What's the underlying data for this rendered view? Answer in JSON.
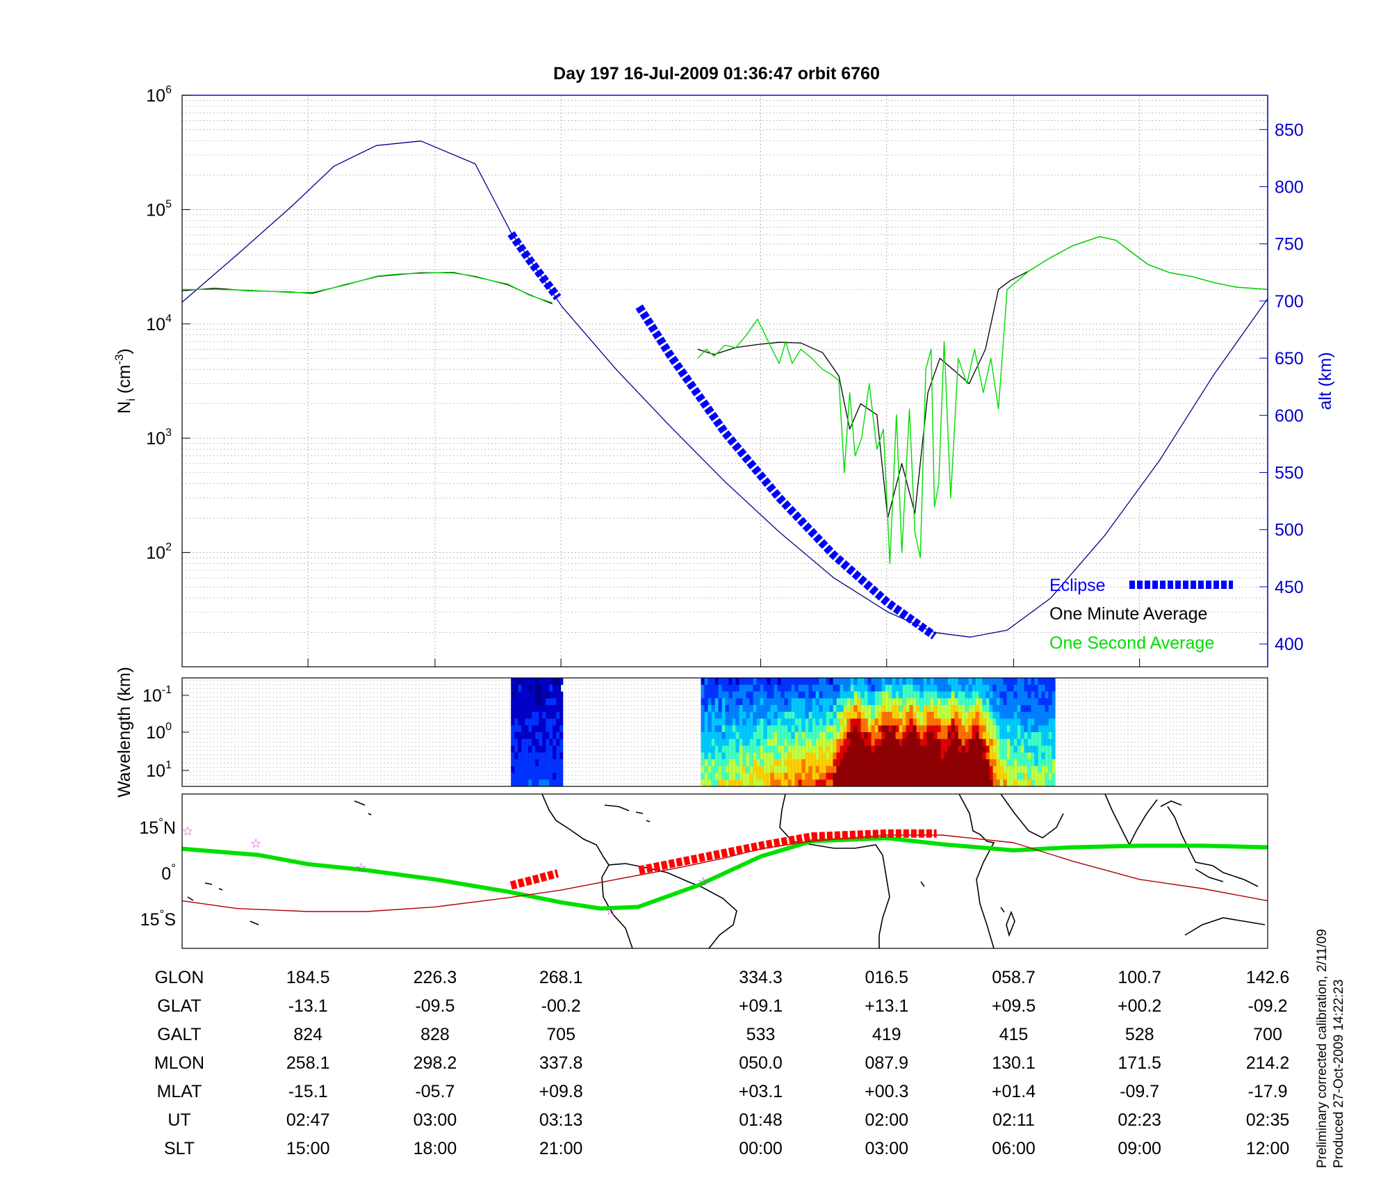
{
  "title": "Day 197  16-Jul-2009 01:36:47   orbit 6760",
  "footnote": [
    "Preliminary corrected calibration, 2/11/09",
    "Produced 27-Oct-2009 14:22:23"
  ],
  "colors": {
    "eclipse": "#0000ff",
    "one_minute": "#000000",
    "one_second": "#00dd00",
    "altitude": "#00008b",
    "map_track": "#00e000",
    "map_eclipse": "#ff0000",
    "map_mag_equator": "#b00000",
    "stars": "#cc33cc"
  },
  "chart_data": [
    {
      "type": "line",
      "name": "density-panel",
      "ylabel": "N_i (cm^-3)",
      "ylabel_base": "N",
      "ylabel_sub": "i",
      "ylabel_unit": "(cm",
      "ylabel_exp": "-3",
      "ylabel_close": ")",
      "yscale": "log",
      "ylim": [
        10,
        1000000
      ],
      "yticks": [
        {
          "base": "10",
          "exp": "2",
          "value": 100
        },
        {
          "base": "10",
          "exp": "3",
          "value": 1000
        },
        {
          "base": "10",
          "exp": "4",
          "value": 10000
        },
        {
          "base": "10",
          "exp": "5",
          "value": 100000
        },
        {
          "base": "10",
          "exp": "6",
          "value": 1000000
        }
      ],
      "y2label": "alt (km)",
      "y2lim": [
        380,
        880
      ],
      "y2ticks": [
        400,
        450,
        500,
        550,
        600,
        650,
        700,
        750,
        800,
        850
      ],
      "xlim": [
        0,
        100
      ],
      "xticks": [
        11.6,
        23.3,
        34.9,
        53.3,
        64.9,
        76.6,
        88.2
      ],
      "grid": true,
      "legend_placement": "bottom-right",
      "legend": [
        {
          "label": "Eclipse",
          "key": "eclipse"
        },
        {
          "label": "One Minute Average",
          "key": "one_minute"
        },
        {
          "label": "One Second Average",
          "key": "one_second"
        }
      ],
      "series": [
        {
          "key": "altitude",
          "axis": "right",
          "x": [
            0,
            5,
            10,
            14,
            17.9,
            22,
            27,
            30.3,
            35,
            40,
            45,
            50,
            55,
            60,
            65,
            69.3,
            72.6,
            76,
            80,
            85,
            90,
            95,
            100
          ],
          "y": [
            699,
            740,
            782,
            818,
            836,
            840,
            820,
            760,
            695,
            640,
            590,
            542,
            498,
            458,
            428,
            410,
            406,
            412,
            440,
            495,
            560,
            635,
            702
          ]
        },
        {
          "key": "one_minute",
          "axis": "left",
          "x": [
            0,
            3,
            6,
            10,
            12,
            15,
            18,
            20,
            22,
            25,
            27,
            30,
            32,
            34.1
          ],
          "y": [
            19500,
            20500,
            19500,
            19000,
            18500,
            22000,
            26000,
            27000,
            28000,
            28000,
            26000,
            22000,
            18000,
            15000
          ]
        },
        {
          "key": "one_second",
          "axis": "left",
          "x": [
            0,
            3,
            6,
            10,
            12,
            15,
            18,
            20,
            22,
            25,
            27,
            30,
            32,
            34.1
          ],
          "y": [
            20000,
            20000,
            19700,
            18800,
            18800,
            21800,
            26200,
            27300,
            27700,
            28300,
            25700,
            22300,
            17800,
            15300
          ]
        },
        {
          "key": "one_minute",
          "axis": "left",
          "x": [
            47.5,
            49,
            51,
            53,
            55,
            57,
            59,
            60.5,
            61.5,
            62.5,
            64,
            65,
            66.3,
            67.5,
            68.7,
            69.8,
            71,
            72.5,
            74,
            75.2,
            76.3,
            78,
            80,
            82,
            84.5,
            86,
            87.5,
            89,
            91,
            93,
            95,
            97,
            100
          ],
          "y": [
            6000,
            5400,
            6200,
            6600,
            6900,
            6800,
            5600,
            3500,
            1200,
            2000,
            1600,
            200,
            600,
            220,
            2500,
            5000,
            4000,
            3000,
            6000,
            20000,
            24000,
            29000,
            38000,
            48000,
            58000,
            54000,
            42000,
            33000,
            28000,
            26000,
            23000,
            21000,
            20000
          ]
        },
        {
          "key": "one_second",
          "axis": "left",
          "x": [
            47.5,
            48.3,
            49,
            50,
            51,
            52,
            53,
            54,
            55,
            55.6,
            56.2,
            57,
            58,
            59,
            59.8,
            60.5,
            61,
            61.5,
            62,
            62.6,
            63.3,
            64,
            64.6,
            65.2,
            65.8,
            66.3,
            67,
            67.5,
            68,
            68.5,
            69,
            69.3,
            69.7,
            70.2,
            70.8,
            71.5,
            72.3,
            73,
            73.8,
            74.5,
            75.2,
            76,
            77,
            78,
            80,
            82,
            84.5,
            86,
            87.5,
            89,
            91,
            93,
            95,
            97,
            100
          ],
          "y": [
            5000,
            6000,
            5200,
            6500,
            6200,
            8000,
            11000,
            7000,
            4500,
            7000,
            4500,
            6000,
            5000,
            4000,
            3600,
            3200,
            500,
            2500,
            700,
            1000,
            3000,
            800,
            1200,
            80,
            1600,
            100,
            1800,
            150,
            90,
            4000,
            6000,
            250,
            400,
            7000,
            300,
            5000,
            3000,
            6000,
            2500,
            5000,
            1800,
            20000,
            24000,
            29000,
            38000,
            48000,
            58000,
            54000,
            42000,
            33000,
            28000,
            26000,
            23000,
            21000,
            20000
          ]
        },
        {
          "key": "eclipse",
          "axis": "right",
          "x": [
            30.3,
            32,
            34.6
          ],
          "y": [
            759,
            736,
            703
          ]
        },
        {
          "key": "eclipse",
          "axis": "right",
          "x": [
            42.1,
            45,
            50,
            55,
            60,
            65,
            69.3
          ],
          "y": [
            695,
            652,
            585,
            528,
            478,
            436,
            407
          ]
        }
      ]
    },
    {
      "type": "heatmap",
      "name": "wavelength-spectrogram",
      "ylabel": "Wavelength (km)",
      "yscale": "log",
      "yticks": [
        {
          "base": "10",
          "exp": "-1"
        },
        {
          "base": "10",
          "exp": "0"
        },
        {
          "base": "10",
          "exp": "1"
        }
      ],
      "xlim": [
        0,
        100
      ],
      "segments": [
        {
          "x": [
            30.3,
            34.9
          ],
          "level": "low"
        },
        {
          "x": [
            47.8,
            80.2
          ],
          "level": "enhanced"
        }
      ],
      "peaks_x": [
        62,
        65,
        67,
        69,
        71,
        73
      ],
      "grid": true
    },
    {
      "type": "scatter",
      "name": "map-panel",
      "xlim": [
        0,
        100
      ],
      "yticks": [
        {
          "deg": "15",
          "label_suffix": "N",
          "lat": 15
        },
        {
          "deg": "0",
          "label_suffix": "",
          "lat": 0
        },
        {
          "deg": "15",
          "label_suffix": "S",
          "lat": -15
        }
      ],
      "series": [
        {
          "key": "map_track",
          "x": [
            0,
            7,
            11.6,
            17,
            23.3,
            30,
            34.9,
            38.5,
            42,
            47.5,
            53.3,
            58,
            64.9,
            70,
            76.6,
            82,
            88.2,
            94,
            100
          ],
          "y": [
            8,
            6,
            3,
            1,
            -2,
            -6,
            -9.5,
            -11.5,
            -11,
            -4,
            5.5,
            10.5,
            11.5,
            9.5,
            7.5,
            8.5,
            9,
            9,
            8.5
          ]
        },
        {
          "key": "map_mag_equator",
          "x": [
            0,
            5,
            11.6,
            17,
            23.3,
            30,
            34.9,
            40,
            46,
            50,
            53.3,
            58,
            64.9,
            70,
            76.6,
            82,
            88.2,
            94,
            100
          ],
          "y": [
            -9,
            -11.5,
            -12.5,
            -12.5,
            -11,
            -8,
            -5.5,
            -2,
            2,
            5,
            8,
            10.5,
            12.5,
            12.5,
            10,
            4,
            -2,
            -5,
            -9
          ]
        },
        {
          "key": "map_eclipse",
          "x": [
            30.3,
            32.5,
            34.6
          ],
          "y": [
            -4,
            -2,
            0
          ]
        },
        {
          "key": "map_eclipse",
          "x": [
            42.1,
            47,
            53.3,
            58,
            64.9,
            69.5
          ],
          "y": [
            1,
            4.5,
            9,
            12,
            13,
            13
          ]
        }
      ],
      "stars": [
        {
          "x": 0.5,
          "y": 14
        },
        {
          "x": 6.8,
          "y": 10
        },
        {
          "x": 16.5,
          "y": 2
        },
        {
          "x": 39.5,
          "y": -12
        },
        {
          "x": 48,
          "y": -2.5
        }
      ]
    }
  ],
  "table": {
    "rows": [
      {
        "label": "GLON",
        "values": [
          "184.5",
          "226.3",
          "268.1",
          "334.3",
          "016.5",
          "058.7",
          "100.7",
          "142.6"
        ]
      },
      {
        "label": "GLAT",
        "values": [
          "-13.1",
          "-09.5",
          "-00.2",
          "+09.1",
          "+13.1",
          "+09.5",
          "+00.2",
          "-09.2"
        ]
      },
      {
        "label": "GALT",
        "values": [
          "824",
          "828",
          "705",
          "533",
          "419",
          "415",
          "528",
          "700"
        ]
      },
      {
        "label": "MLON",
        "values": [
          "258.1",
          "298.2",
          "337.8",
          "050.0",
          "087.9",
          "130.1",
          "171.5",
          "214.2"
        ]
      },
      {
        "label": "MLAT",
        "values": [
          "-15.1",
          "-05.7",
          "+09.8",
          "+03.1",
          "+00.3",
          "+01.4",
          "-09.7",
          "-17.9"
        ]
      },
      {
        "label": "UT",
        "values": [
          "02:47",
          "03:00",
          "03:13",
          "01:48",
          "02:00",
          "02:11",
          "02:23",
          "02:35"
        ]
      },
      {
        "label": "SLT",
        "values": [
          "15:00",
          "18:00",
          "21:00",
          "00:00",
          "03:00",
          "06:00",
          "09:00",
          "12:00"
        ]
      }
    ]
  }
}
